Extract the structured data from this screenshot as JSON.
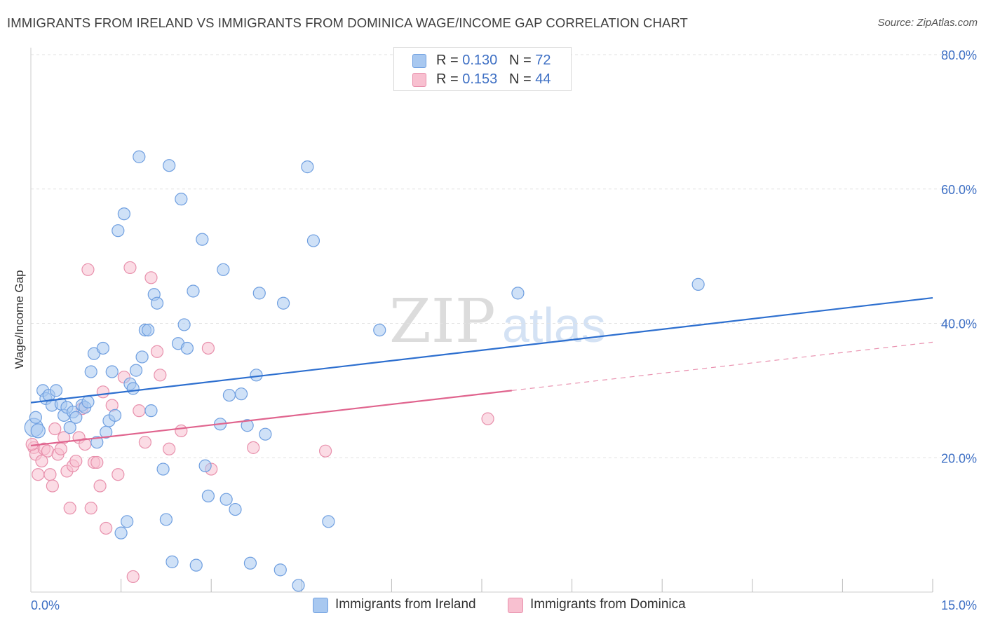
{
  "header": {
    "title": "IMMIGRANTS FROM IRELAND VS IMMIGRANTS FROM DOMINICA WAGE/INCOME GAP CORRELATION CHART",
    "source": "Source: ZipAtlas.com"
  },
  "legend": {
    "r_label": "R =",
    "n_label": "N =",
    "series": [
      {
        "r": "0.130",
        "n": "72"
      },
      {
        "r": "0.153",
        "n": "44"
      }
    ]
  },
  "colors": {
    "ireland_fill": "#a8c8f0",
    "ireland_stroke": "#6f9fe0",
    "ireland_line": "#2d6fcf",
    "dominica_fill": "#f8c0d0",
    "dominica_stroke": "#e890ac",
    "dominica_line": "#e0648e",
    "axis_text": "#3d6fc4",
    "grid": "#e2e2e2"
  },
  "chart_data": {
    "type": "scatter",
    "title": "IMMIGRANTS FROM IRELAND VS IMMIGRANTS FROM DOMINICA WAGE/INCOME GAP CORRELATION CHART",
    "xlabel": "",
    "ylabel": "Wage/Income Gap",
    "xlim": [
      0,
      15
    ],
    "ylim": [
      0,
      80
    ],
    "x_tick_labels": [
      "0.0%",
      "15.0%"
    ],
    "y_tick_labels": [
      "20.0%",
      "40.0%",
      "60.0%",
      "80.0%"
    ],
    "y_ticks": [
      20,
      40,
      60,
      80
    ],
    "watermark": {
      "zip": "ZIP",
      "atlas": "atlas"
    },
    "series": [
      {
        "name": "Immigrants from Ireland",
        "r": 0.13,
        "n": 72,
        "trend": {
          "x0": 0,
          "y0": 28.2,
          "x1": 15,
          "y1": 43.8
        },
        "points": [
          [
            0.05,
            24.5
          ],
          [
            0.08,
            26.0
          ],
          [
            0.12,
            24.0
          ],
          [
            0.2,
            30.0
          ],
          [
            0.25,
            28.8
          ],
          [
            0.3,
            29.3
          ],
          [
            0.35,
            27.8
          ],
          [
            0.42,
            30.0
          ],
          [
            0.5,
            28.0
          ],
          [
            0.55,
            26.3
          ],
          [
            0.6,
            27.5
          ],
          [
            0.65,
            24.5
          ],
          [
            0.7,
            26.8
          ],
          [
            0.75,
            26.0
          ],
          [
            0.85,
            27.8
          ],
          [
            0.9,
            27.5
          ],
          [
            0.95,
            28.3
          ],
          [
            1.0,
            32.8
          ],
          [
            1.05,
            35.5
          ],
          [
            1.1,
            22.3
          ],
          [
            1.2,
            36.3
          ],
          [
            1.25,
            23.8
          ],
          [
            1.3,
            25.5
          ],
          [
            1.35,
            32.8
          ],
          [
            1.4,
            26.3
          ],
          [
            1.45,
            53.8
          ],
          [
            1.5,
            8.8
          ],
          [
            1.55,
            56.3
          ],
          [
            1.6,
            10.5
          ],
          [
            1.65,
            31.0
          ],
          [
            1.7,
            30.3
          ],
          [
            1.75,
            33.0
          ],
          [
            1.8,
            64.8
          ],
          [
            1.85,
            35.0
          ],
          [
            1.9,
            39.0
          ],
          [
            1.95,
            39.0
          ],
          [
            2.0,
            27.0
          ],
          [
            2.05,
            44.3
          ],
          [
            2.1,
            43.0
          ],
          [
            2.2,
            18.3
          ],
          [
            2.25,
            10.8
          ],
          [
            2.3,
            63.5
          ],
          [
            2.35,
            4.5
          ],
          [
            2.45,
            37.0
          ],
          [
            2.5,
            58.5
          ],
          [
            2.55,
            39.8
          ],
          [
            2.6,
            36.3
          ],
          [
            2.7,
            44.8
          ],
          [
            2.75,
            4.0
          ],
          [
            2.85,
            52.5
          ],
          [
            2.9,
            18.8
          ],
          [
            2.95,
            14.3
          ],
          [
            3.15,
            25.0
          ],
          [
            3.2,
            48.0
          ],
          [
            3.25,
            13.8
          ],
          [
            3.3,
            29.3
          ],
          [
            3.4,
            12.3
          ],
          [
            3.5,
            29.5
          ],
          [
            3.6,
            24.8
          ],
          [
            3.65,
            4.3
          ],
          [
            3.75,
            32.3
          ],
          [
            3.8,
            44.5
          ],
          [
            3.9,
            23.5
          ],
          [
            4.15,
            3.3
          ],
          [
            4.2,
            43.0
          ],
          [
            4.45,
            1.0
          ],
          [
            4.6,
            63.3
          ],
          [
            4.7,
            52.3
          ],
          [
            4.95,
            10.5
          ],
          [
            5.8,
            39.0
          ],
          [
            8.1,
            44.5
          ],
          [
            11.1,
            45.8
          ]
        ]
      },
      {
        "name": "Immigrants from Dominica",
        "r": 0.153,
        "n": 44,
        "trend": {
          "x0": 0,
          "y0": 21.8,
          "x1": 8.0,
          "y1": 30.0
        },
        "trend_dashed": {
          "x0": 8.0,
          "y0": 30.0,
          "x1": 15,
          "y1": 37.2
        },
        "points": [
          [
            0.05,
            21.5
          ],
          [
            0.08,
            20.5
          ],
          [
            0.12,
            17.5
          ],
          [
            0.18,
            19.5
          ],
          [
            0.22,
            21.3
          ],
          [
            0.28,
            21.0
          ],
          [
            0.32,
            17.5
          ],
          [
            0.36,
            15.8
          ],
          [
            0.4,
            24.3
          ],
          [
            0.45,
            20.5
          ],
          [
            0.5,
            21.3
          ],
          [
            0.55,
            23.0
          ],
          [
            0.6,
            18.0
          ],
          [
            0.65,
            12.5
          ],
          [
            0.7,
            18.8
          ],
          [
            0.75,
            19.5
          ],
          [
            0.8,
            23.0
          ],
          [
            0.85,
            27.3
          ],
          [
            0.9,
            22.0
          ],
          [
            0.95,
            48.0
          ],
          [
            1.0,
            12.5
          ],
          [
            1.05,
            19.3
          ],
          [
            1.1,
            19.3
          ],
          [
            1.15,
            15.8
          ],
          [
            1.2,
            29.8
          ],
          [
            1.25,
            9.5
          ],
          [
            1.35,
            27.8
          ],
          [
            1.45,
            17.5
          ],
          [
            1.55,
            32.0
          ],
          [
            1.65,
            48.3
          ],
          [
            1.7,
            2.3
          ],
          [
            1.8,
            27.0
          ],
          [
            1.9,
            22.3
          ],
          [
            2.0,
            46.8
          ],
          [
            2.1,
            35.8
          ],
          [
            2.15,
            32.3
          ],
          [
            2.3,
            21.3
          ],
          [
            2.5,
            24.0
          ],
          [
            2.95,
            36.3
          ],
          [
            3.0,
            18.3
          ],
          [
            3.7,
            21.5
          ],
          [
            4.9,
            21.0
          ],
          [
            7.6,
            25.8
          ],
          [
            0.02,
            22.0
          ]
        ]
      }
    ]
  },
  "bottom_legend": {
    "ireland_label": "Immigrants from Ireland",
    "dominica_label": "Immigrants from Dominica"
  }
}
